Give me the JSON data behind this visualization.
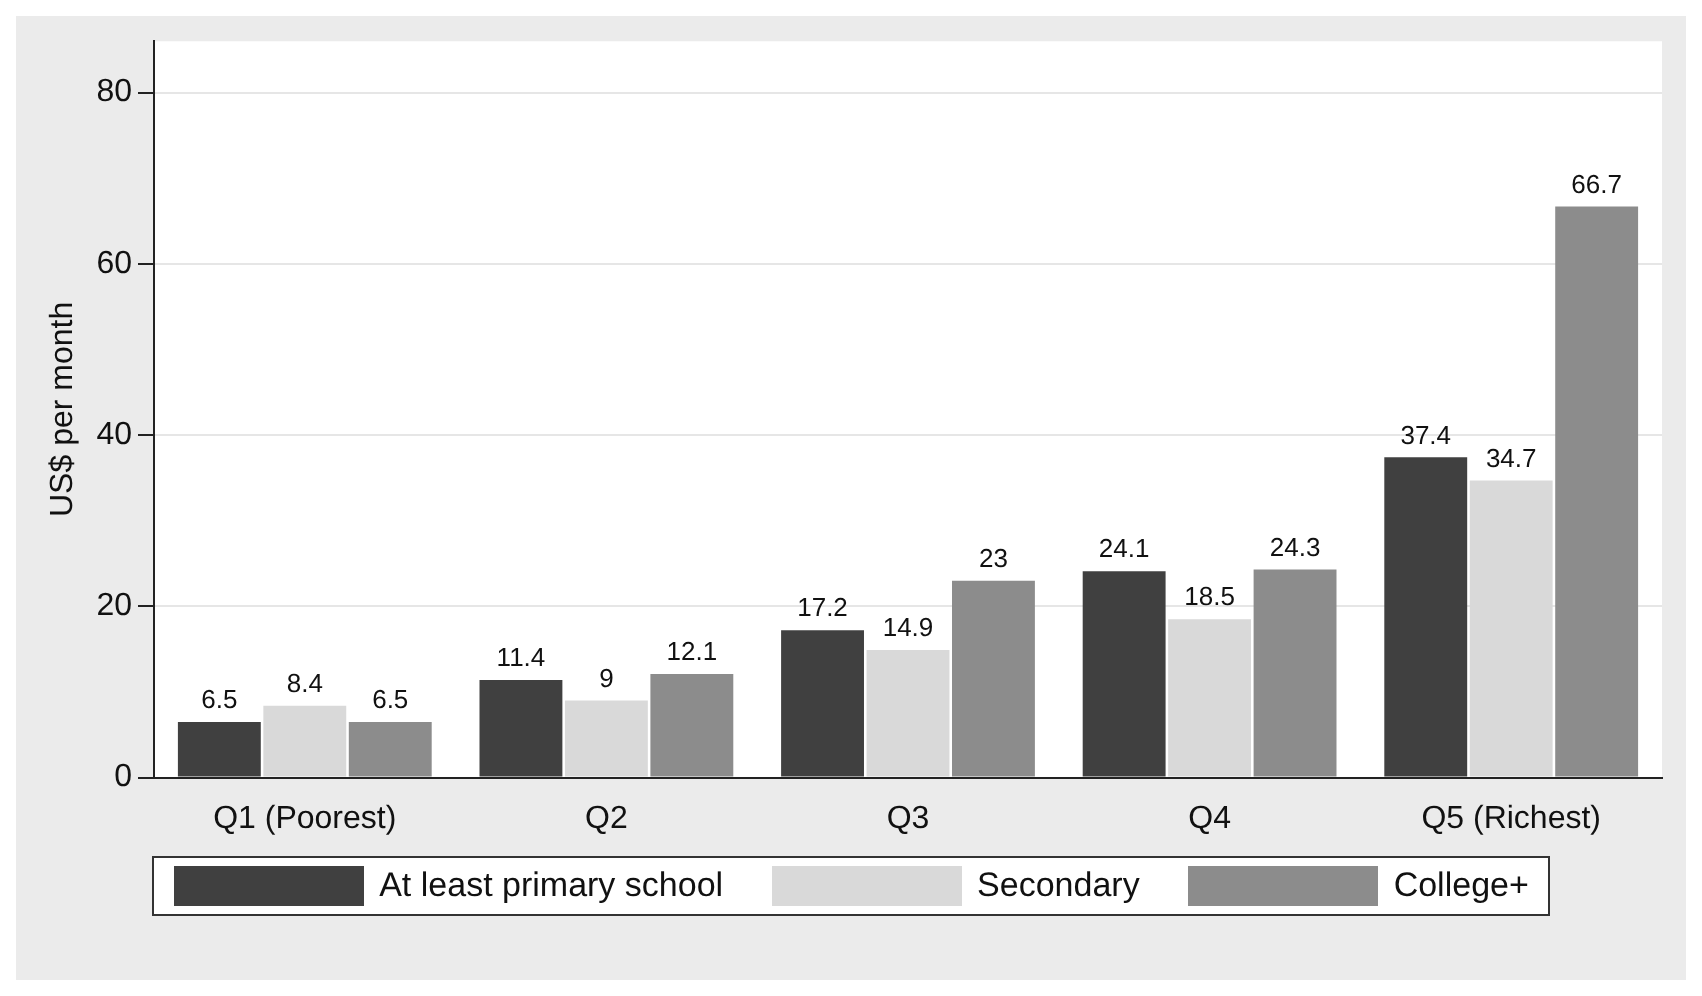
{
  "chart_data": {
    "type": "bar",
    "ylabel": "US$ per month",
    "categories": [
      "Q1 (Poorest)",
      "Q2",
      "Q3",
      "Q4",
      "Q5 (Richest)"
    ],
    "series": [
      {
        "name": "At least primary school",
        "color": "#404040",
        "values": [
          6.5,
          11.4,
          17.2,
          24.1,
          37.4
        ]
      },
      {
        "name": "Secondary",
        "color": "#d9d9d9",
        "values": [
          8.4,
          9,
          14.9,
          18.5,
          34.7
        ]
      },
      {
        "name": "College+",
        "color": "#8c8c8c",
        "values": [
          6.5,
          12.1,
          23,
          24.3,
          66.7
        ]
      }
    ],
    "ylim": [
      0,
      86
    ],
    "yticks": [
      0,
      20,
      40,
      60,
      80
    ],
    "grid": "y",
    "legend": "bottom",
    "data_labels": true
  }
}
